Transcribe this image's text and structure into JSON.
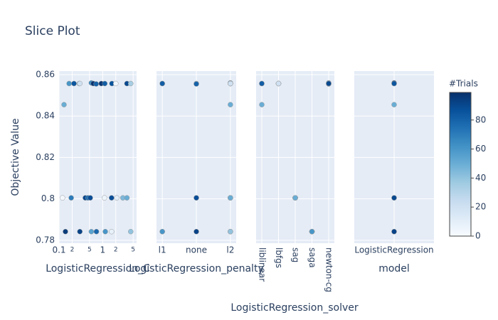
{
  "title": "Slice Plot",
  "colorbar": {
    "title": "#Trials",
    "lim": [
      0,
      99
    ],
    "ticks": [
      0,
      20,
      40,
      60,
      80
    ],
    "colorscale": [
      "#f7fbff",
      "#deebf7",
      "#c6dbef",
      "#9ecae1",
      "#6baed6",
      "#4292c6",
      "#2171b5",
      "#08519c",
      "#08306b"
    ]
  },
  "chart_data": [
    {
      "type": "scatter",
      "xlabel": "LogisticRegression_C",
      "ylabel": "Objective Value",
      "xscale": "log",
      "xlim": [
        0.1,
        6
      ],
      "xticks": [
        0.1,
        {
          "value": 0.2,
          "label": "2"
        },
        {
          "value": 0.5,
          "label": "5"
        },
        1,
        {
          "value": 2,
          "label": "2"
        },
        {
          "value": 5,
          "label": "5"
        }
      ],
      "ylim": [
        0.7786,
        0.8617
      ],
      "yticks": [
        0.78,
        0.8,
        0.82,
        0.84,
        0.86
      ],
      "grid": true,
      "x": [
        0.12,
        0.13,
        0.17,
        0.22,
        0.19,
        0.14,
        0.29,
        0.4,
        0.46,
        0.52,
        0.55,
        0.61,
        0.71,
        0.3,
        0.55,
        1.1,
        0.93,
        1.12,
        0.72,
        1.6,
        2.1,
        1.63,
        1.6,
        2.0,
        2.9,
        3.6,
        3.6,
        4.4,
        4.4,
        1.15,
        0.3
      ],
      "values": [
        0.8005,
        0.8455,
        0.8557,
        0.8557,
        0.8005,
        0.7842,
        0.8557,
        0.8005,
        0.8005,
        0.8005,
        0.856,
        0.8557,
        0.8555,
        0.7842,
        0.7842,
        0.8005,
        0.8557,
        0.8557,
        0.7842,
        0.8005,
        0.8005,
        0.8557,
        0.7842,
        0.8557,
        0.8005,
        0.8005,
        0.8557,
        0.8557,
        0.7842,
        0.7842,
        0.8557
      ],
      "trials": [
        2,
        50,
        60,
        85,
        70,
        95,
        40,
        90,
        75,
        88,
        65,
        98,
        80,
        92,
        55,
        5,
        97,
        82,
        78,
        88,
        10,
        86,
        8,
        3,
        45,
        50,
        90,
        35,
        40,
        60,
        20
      ]
    },
    {
      "type": "scatter",
      "xlabel": "LogisticRegression_penalty",
      "categories": [
        "l1",
        "none",
        "l2"
      ],
      "ylim": [
        0.7786,
        0.8617
      ],
      "yticks": [
        0.78,
        0.8,
        0.82,
        0.84,
        0.86
      ],
      "grid": true,
      "x": [
        "l2",
        "l2",
        "l1",
        "l2",
        "l2",
        "l2",
        "none",
        "none",
        "l2",
        "l2",
        "l2",
        "l2",
        "none",
        "none",
        "l2",
        "l2",
        "l2",
        "l1",
        "l1",
        "none",
        "l2",
        "l2",
        "l2",
        "l2",
        "l2",
        "l2",
        "l2",
        "l2",
        "l2",
        "l1",
        "l2"
      ],
      "values": [
        0.8005,
        0.8455,
        0.8557,
        0.8557,
        0.8005,
        0.7842,
        0.8557,
        0.8005,
        0.8005,
        0.8005,
        0.856,
        0.8557,
        0.8555,
        0.7842,
        0.7842,
        0.8005,
        0.8557,
        0.8557,
        0.7842,
        0.8005,
        0.8005,
        0.8557,
        0.7842,
        0.8557,
        0.8005,
        0.8005,
        0.8557,
        0.8557,
        0.7842,
        0.7842,
        0.8557
      ],
      "trials": [
        2,
        50,
        60,
        85,
        70,
        95,
        40,
        90,
        75,
        88,
        65,
        98,
        80,
        92,
        55,
        5,
        97,
        82,
        78,
        88,
        10,
        86,
        8,
        3,
        45,
        50,
        90,
        35,
        40,
        60,
        20
      ]
    },
    {
      "type": "scatter",
      "xlabel": "LogisticRegression_solver",
      "categories": [
        "liblinear",
        "lbfgs",
        "sag",
        "saga",
        "newton-cg"
      ],
      "ylim": [
        0.7786,
        0.8617
      ],
      "yticks": [
        0.78,
        0.8,
        0.82,
        0.84,
        0.86
      ],
      "grid": true,
      "x": [
        "sag",
        "liblinear",
        "liblinear",
        "lbfgs",
        "sag",
        "saga",
        "lbfgs",
        "sag",
        "sag",
        "sag",
        "newton-cg",
        "newton-cg",
        "newton-cg",
        "saga",
        "saga",
        "sag",
        "newton-cg",
        "liblinear",
        "saga",
        "sag",
        "sag",
        "lbfgs",
        "saga",
        "newton-cg",
        "sag",
        "sag",
        "newton-cg",
        "lbfgs",
        "saga",
        "saga",
        "lbfgs"
      ],
      "values": [
        0.8005,
        0.8455,
        0.8557,
        0.8557,
        0.8005,
        0.7842,
        0.8557,
        0.8005,
        0.8005,
        0.8005,
        0.856,
        0.8557,
        0.8555,
        0.7842,
        0.7842,
        0.8005,
        0.8557,
        0.8557,
        0.7842,
        0.8005,
        0.8005,
        0.8557,
        0.7842,
        0.8557,
        0.8005,
        0.8005,
        0.8557,
        0.8557,
        0.7842,
        0.7842,
        0.8557
      ],
      "trials": [
        2,
        50,
        60,
        85,
        70,
        95,
        40,
        90,
        75,
        88,
        65,
        98,
        80,
        92,
        55,
        5,
        97,
        82,
        78,
        88,
        10,
        86,
        8,
        3,
        45,
        50,
        90,
        35,
        40,
        60,
        20
      ]
    },
    {
      "type": "scatter",
      "xlabel": "model",
      "categories": [
        "LogisticRegression"
      ],
      "ylim": [
        0.7786,
        0.8617
      ],
      "yticks": [
        0.78,
        0.8,
        0.82,
        0.84,
        0.86
      ],
      "grid": true,
      "x": [
        "LogisticRegression",
        "LogisticRegression",
        "LogisticRegression",
        "LogisticRegression",
        "LogisticRegression",
        "LogisticRegression",
        "LogisticRegression",
        "LogisticRegression"
      ],
      "values": [
        0.8005,
        0.8455,
        0.8557,
        0.7842,
        0.856,
        0.8005,
        0.7842,
        0.8557
      ],
      "trials": [
        2,
        50,
        60,
        95,
        98,
        90,
        92,
        85
      ]
    }
  ]
}
